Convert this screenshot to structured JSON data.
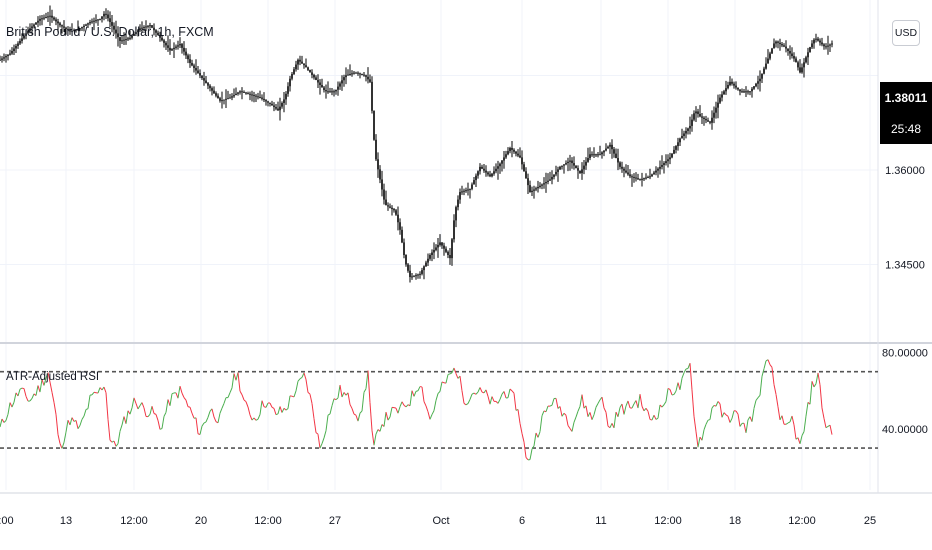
{
  "header": {
    "title": "British Pound / U.S. Dollar, 1h, FXCM",
    "currency_button": "USD"
  },
  "price_badge": {
    "price": "1.38011",
    "countdown": "25:48"
  },
  "indicator": {
    "title": "ATR-Adjusted RSI"
  },
  "colors": {
    "candle": "#000000",
    "rsi_up": "#4caf50",
    "rsi_down": "#f23645",
    "dashed": "#555555",
    "grid": "#f0f3fa"
  },
  "chart_data": [
    {
      "type": "line",
      "name": "price",
      "y_ticks": [
        "1.36000",
        "1.34500"
      ],
      "ylim": [
        1.333,
        1.387
      ],
      "points": [
        [
          0,
          1.3775
        ],
        [
          10,
          1.3785
        ],
        [
          20,
          1.3805
        ],
        [
          30,
          1.3825
        ],
        [
          40,
          1.384
        ],
        [
          50,
          1.3845
        ],
        [
          60,
          1.383
        ],
        [
          70,
          1.382
        ],
        [
          80,
          1.3825
        ],
        [
          90,
          1.3835
        ],
        [
          100,
          1.384
        ],
        [
          105,
          1.385
        ],
        [
          110,
          1.3835
        ],
        [
          115,
          1.382
        ],
        [
          120,
          1.3805
        ],
        [
          130,
          1.381
        ],
        [
          140,
          1.3825
        ],
        [
          150,
          1.383
        ],
        [
          160,
          1.381
        ],
        [
          170,
          1.379
        ],
        [
          180,
          1.38
        ],
        [
          185,
          1.3785
        ],
        [
          190,
          1.377
        ],
        [
          200,
          1.375
        ],
        [
          210,
          1.373
        ],
        [
          220,
          1.371
        ],
        [
          230,
          1.3715
        ],
        [
          240,
          1.3725
        ],
        [
          250,
          1.372
        ],
        [
          260,
          1.3715
        ],
        [
          270,
          1.3705
        ],
        [
          278,
          1.3695
        ],
        [
          285,
          1.3715
        ],
        [
          290,
          1.3745
        ],
        [
          298,
          1.3775
        ],
        [
          305,
          1.3765
        ],
        [
          315,
          1.3745
        ],
        [
          325,
          1.3725
        ],
        [
          335,
          1.3725
        ],
        [
          345,
          1.375
        ],
        [
          355,
          1.3755
        ],
        [
          365,
          1.375
        ],
        [
          370,
          1.374
        ],
        [
          375,
          1.3625
        ],
        [
          385,
          1.3545
        ],
        [
          395,
          1.3535
        ],
        [
          400,
          1.3505
        ],
        [
          405,
          1.3455
        ],
        [
          410,
          1.343
        ],
        [
          420,
          1.3435
        ],
        [
          430,
          1.3465
        ],
        [
          440,
          1.3485
        ],
        [
          450,
          1.346
        ],
        [
          455,
          1.3535
        ],
        [
          460,
          1.3565
        ],
        [
          470,
          1.357
        ],
        [
          480,
          1.3605
        ],
        [
          490,
          1.359
        ],
        [
          500,
          1.361
        ],
        [
          510,
          1.3635
        ],
        [
          520,
          1.362
        ],
        [
          530,
          1.3565
        ],
        [
          540,
          1.3575
        ],
        [
          550,
          1.3585
        ],
        [
          560,
          1.3605
        ],
        [
          570,
          1.3615
        ],
        [
          580,
          1.3595
        ],
        [
          590,
          1.3625
        ],
        [
          600,
          1.3625
        ],
        [
          610,
          1.364
        ],
        [
          620,
          1.3605
        ],
        [
          630,
          1.359
        ],
        [
          640,
          1.3585
        ],
        [
          650,
          1.359
        ],
        [
          660,
          1.3605
        ],
        [
          670,
          1.362
        ],
        [
          680,
          1.365
        ],
        [
          690,
          1.367
        ],
        [
          695,
          1.3695
        ],
        [
          700,
          1.3685
        ],
        [
          710,
          1.3675
        ],
        [
          720,
          1.3715
        ],
        [
          730,
          1.374
        ],
        [
          740,
          1.3725
        ],
        [
          750,
          1.3725
        ],
        [
          760,
          1.3745
        ],
        [
          770,
          1.3785
        ],
        [
          775,
          1.3805
        ],
        [
          785,
          1.3795
        ],
        [
          795,
          1.3775
        ],
        [
          800,
          1.3755
        ],
        [
          810,
          1.3795
        ],
        [
          815,
          1.381
        ],
        [
          825,
          1.3795
        ],
        [
          832,
          1.3801
        ]
      ]
    },
    {
      "type": "line",
      "name": "ATR-Adjusted RSI",
      "y_ticks": [
        "80.00000",
        "40.00000"
      ],
      "ylim": [
        8,
        84
      ],
      "levels": [
        70,
        30
      ],
      "points": [
        [
          0,
          40
        ],
        [
          10,
          52
        ],
        [
          20,
          60
        ],
        [
          30,
          55
        ],
        [
          40,
          62
        ],
        [
          48,
          70
        ],
        [
          55,
          50
        ],
        [
          60,
          30
        ],
        [
          70,
          45
        ],
        [
          80,
          40
        ],
        [
          90,
          55
        ],
        [
          100,
          60
        ],
        [
          105,
          65
        ],
        [
          110,
          35
        ],
        [
          115,
          30
        ],
        [
          125,
          45
        ],
        [
          135,
          55
        ],
        [
          145,
          50
        ],
        [
          155,
          48
        ],
        [
          160,
          40
        ],
        [
          170,
          55
        ],
        [
          180,
          60
        ],
        [
          190,
          50
        ],
        [
          200,
          38
        ],
        [
          210,
          50
        ],
        [
          220,
          45
        ],
        [
          230,
          60
        ],
        [
          237,
          70
        ],
        [
          245,
          52
        ],
        [
          255,
          45
        ],
        [
          265,
          55
        ],
        [
          275,
          48
        ],
        [
          285,
          50
        ],
        [
          295,
          60
        ],
        [
          305,
          68
        ],
        [
          312,
          52
        ],
        [
          320,
          30
        ],
        [
          330,
          50
        ],
        [
          340,
          60
        ],
        [
          350,
          55
        ],
        [
          360,
          45
        ],
        [
          368,
          70
        ],
        [
          373,
          28
        ],
        [
          380,
          42
        ],
        [
          390,
          48
        ],
        [
          400,
          50
        ],
        [
          410,
          55
        ],
        [
          420,
          65
        ],
        [
          430,
          45
        ],
        [
          440,
          60
        ],
        [
          450,
          68
        ],
        [
          456,
          72
        ],
        [
          465,
          55
        ],
        [
          475,
          60
        ],
        [
          485,
          58
        ],
        [
          495,
          52
        ],
        [
          505,
          60
        ],
        [
          515,
          55
        ],
        [
          522,
          40
        ],
        [
          527,
          20
        ],
        [
          532,
          30
        ],
        [
          542,
          45
        ],
        [
          552,
          55
        ],
        [
          562,
          50
        ],
        [
          572,
          42
        ],
        [
          582,
          55
        ],
        [
          592,
          45
        ],
        [
          600,
          58
        ],
        [
          610,
          40
        ],
        [
          620,
          50
        ],
        [
          630,
          52
        ],
        [
          640,
          55
        ],
        [
          650,
          45
        ],
        [
          660,
          50
        ],
        [
          670,
          60
        ],
        [
          680,
          62
        ],
        [
          690,
          73
        ],
        [
          697,
          32
        ],
        [
          705,
          40
        ],
        [
          715,
          55
        ],
        [
          725,
          45
        ],
        [
          735,
          48
        ],
        [
          745,
          40
        ],
        [
          755,
          50
        ],
        [
          765,
          72
        ],
        [
          770,
          75
        ],
        [
          778,
          52
        ],
        [
          785,
          38
        ],
        [
          792,
          45
        ],
        [
          800,
          30
        ],
        [
          805,
          42
        ],
        [
          812,
          62
        ],
        [
          818,
          68
        ],
        [
          825,
          42
        ],
        [
          832,
          40
        ]
      ]
    }
  ],
  "x_axis": {
    "ticks": [
      {
        "label": ":00",
        "x": 6
      },
      {
        "label": "13",
        "x": 66
      },
      {
        "label": "12:00",
        "x": 134
      },
      {
        "label": "20",
        "x": 201
      },
      {
        "label": "12:00",
        "x": 268
      },
      {
        "label": "27",
        "x": 335
      },
      {
        "label": "Oct",
        "x": 441
      },
      {
        "label": "6",
        "x": 522
      },
      {
        "label": "11",
        "x": 601
      },
      {
        "label": "12:00",
        "x": 668
      },
      {
        "label": "18",
        "x": 735
      },
      {
        "label": "12:00",
        "x": 802
      },
      {
        "label": "25",
        "x": 870
      }
    ]
  }
}
